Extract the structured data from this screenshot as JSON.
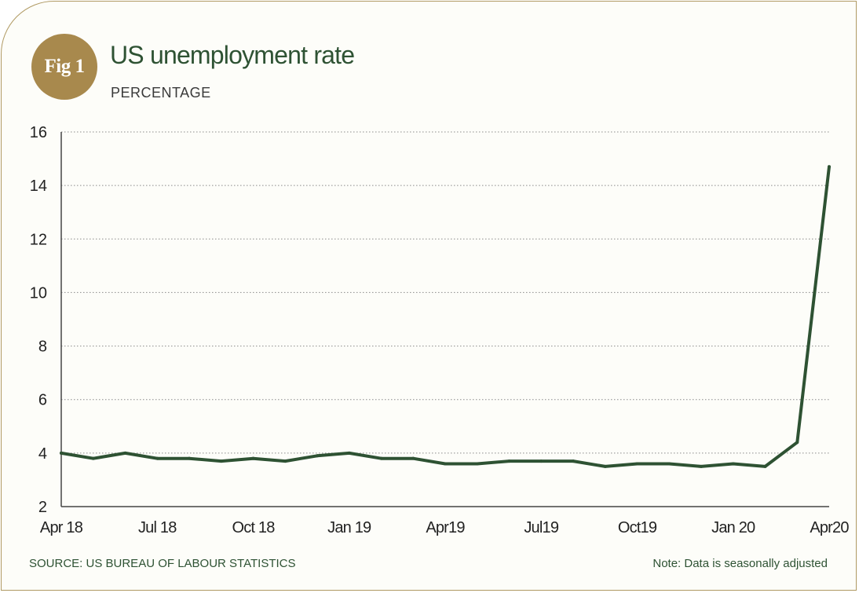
{
  "badge": {
    "label": "Fig 1"
  },
  "header": {
    "title": "US unemployment rate",
    "subtitle": "PERCENTAGE"
  },
  "footer": {
    "source": "SOURCE: US BUREAU OF LABOUR STATISTICS",
    "note": "Note: Data is seasonally adjusted"
  },
  "colors": {
    "line": "#2e5233",
    "accent": "#a8894d",
    "grid": "#8a8a8a",
    "axis": "#444444"
  },
  "chart_data": {
    "type": "line",
    "title": "US unemployment rate",
    "subtitle": "PERCENTAGE",
    "ylim": [
      2,
      16
    ],
    "yticks": [
      2,
      4,
      6,
      8,
      10,
      12,
      14,
      16
    ],
    "grid": "horizontal-dotted",
    "x": [
      "Apr 18",
      "May 18",
      "Jun 18",
      "Jul 18",
      "Aug 18",
      "Sep 18",
      "Oct 18",
      "Nov 18",
      "Dec 18",
      "Jan 19",
      "Feb 19",
      "Mar 19",
      "Apr19",
      "May19",
      "Jun19",
      "Jul19",
      "Aug19",
      "Sep19",
      "Oct19",
      "Nov19",
      "Dec19",
      "Jan 20",
      "Feb20",
      "Mar20",
      "Apr20"
    ],
    "xtick_labels": [
      "Apr 18",
      "Jul 18",
      "Oct 18",
      "Jan 19",
      "Apr19",
      "Jul19",
      "Oct19",
      "Jan 20",
      "Apr20"
    ],
    "xtick_indices": [
      0,
      3,
      6,
      9,
      12,
      15,
      18,
      21,
      24
    ],
    "series": [
      {
        "values": [
          4.0,
          3.8,
          4.0,
          3.8,
          3.8,
          3.7,
          3.8,
          3.7,
          3.9,
          4.0,
          3.8,
          3.8,
          3.6,
          3.6,
          3.7,
          3.7,
          3.7,
          3.5,
          3.6,
          3.6,
          3.5,
          3.6,
          3.5,
          4.4,
          14.7
        ]
      }
    ]
  }
}
